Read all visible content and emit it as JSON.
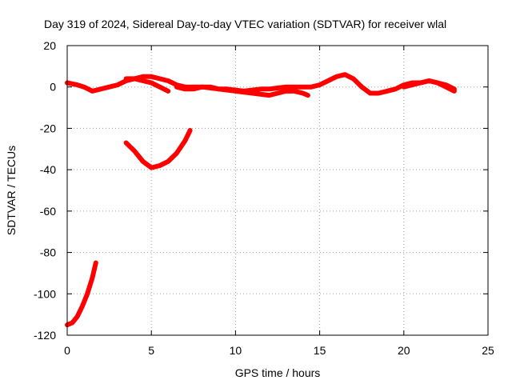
{
  "chart_data": {
    "type": "line",
    "title": "Day 319 of 2024, Sidereal Day-to-day VTEC variation (SDTVAR) for receiver wlal",
    "xlabel": "GPS time / hours",
    "ylabel": "SDTVAR / TECUs",
    "xlim": [
      0,
      25
    ],
    "ylim": [
      -120,
      20
    ],
    "xticks": [
      0,
      5,
      10,
      15,
      20,
      25
    ],
    "yticks": [
      20,
      0,
      -20,
      -40,
      -60,
      -80,
      -100,
      -120
    ],
    "grid": true,
    "legend": "none",
    "color": "#ff0000",
    "series": [
      {
        "x": [
          0,
          0.3,
          0.6,
          1.0,
          1.5,
          2.0,
          2.5,
          3.0,
          3.5,
          4.0,
          4.5,
          5.0,
          5.5,
          6.0,
          6.5,
          7.0,
          7.5,
          8.0,
          8.5,
          9.0,
          9.5,
          10.0,
          10.5,
          11.0,
          11.5,
          12.0,
          12.5,
          13.0,
          13.5,
          14.0,
          14.5,
          15.0,
          15.5,
          16.0,
          16.5,
          17.0,
          17.5,
          18.0,
          18.5,
          19.0,
          19.5,
          20.0,
          20.5,
          21.0,
          21.5,
          22.0,
          22.5,
          23.0
        ],
        "y": [
          2,
          1.5,
          1,
          0,
          -2,
          -1,
          0,
          1,
          3,
          4,
          5,
          5,
          4,
          3,
          1,
          0,
          0,
          0,
          0,
          -1,
          -1,
          -1.5,
          -2,
          -1.5,
          -1,
          -1,
          -0.5,
          0,
          0,
          0,
          0,
          1,
          3,
          5,
          6,
          4,
          0,
          -3,
          -3,
          -2,
          -1,
          1,
          2,
          2,
          3,
          2,
          1,
          -1
        ]
      },
      {
        "x": [
          3.5,
          4.0,
          4.5,
          5.0,
          5.5,
          6.0
        ],
        "y": [
          4,
          4,
          3,
          2,
          0,
          -2
        ]
      },
      {
        "x": [
          6.5,
          7.0,
          7.5,
          8.0,
          9.0,
          10.0,
          11.0,
          12.0,
          12.5,
          13.0,
          13.5,
          14.0,
          14.3
        ],
        "y": [
          0,
          -1,
          -1,
          0,
          -1,
          -2,
          -3,
          -4,
          -3,
          -2,
          -2,
          -3,
          -4
        ]
      },
      {
        "x": [
          20.0,
          20.5,
          21.0,
          21.5,
          22.0,
          22.5,
          23.0
        ],
        "y": [
          0,
          1,
          2,
          3,
          2,
          0,
          -2
        ]
      },
      {
        "x": [
          3.5,
          4.0,
          4.5,
          5.0,
          5.5,
          6.0,
          6.5,
          7.0,
          7.3
        ],
        "y": [
          -27,
          -31,
          -36,
          -39,
          -38,
          -36,
          -32,
          -26,
          -21
        ]
      },
      {
        "x": [
          0,
          0.3,
          0.6,
          0.9,
          1.2,
          1.5,
          1.7
        ],
        "y": [
          -115,
          -114,
          -111,
          -106,
          -100,
          -92,
          -85
        ]
      }
    ]
  }
}
